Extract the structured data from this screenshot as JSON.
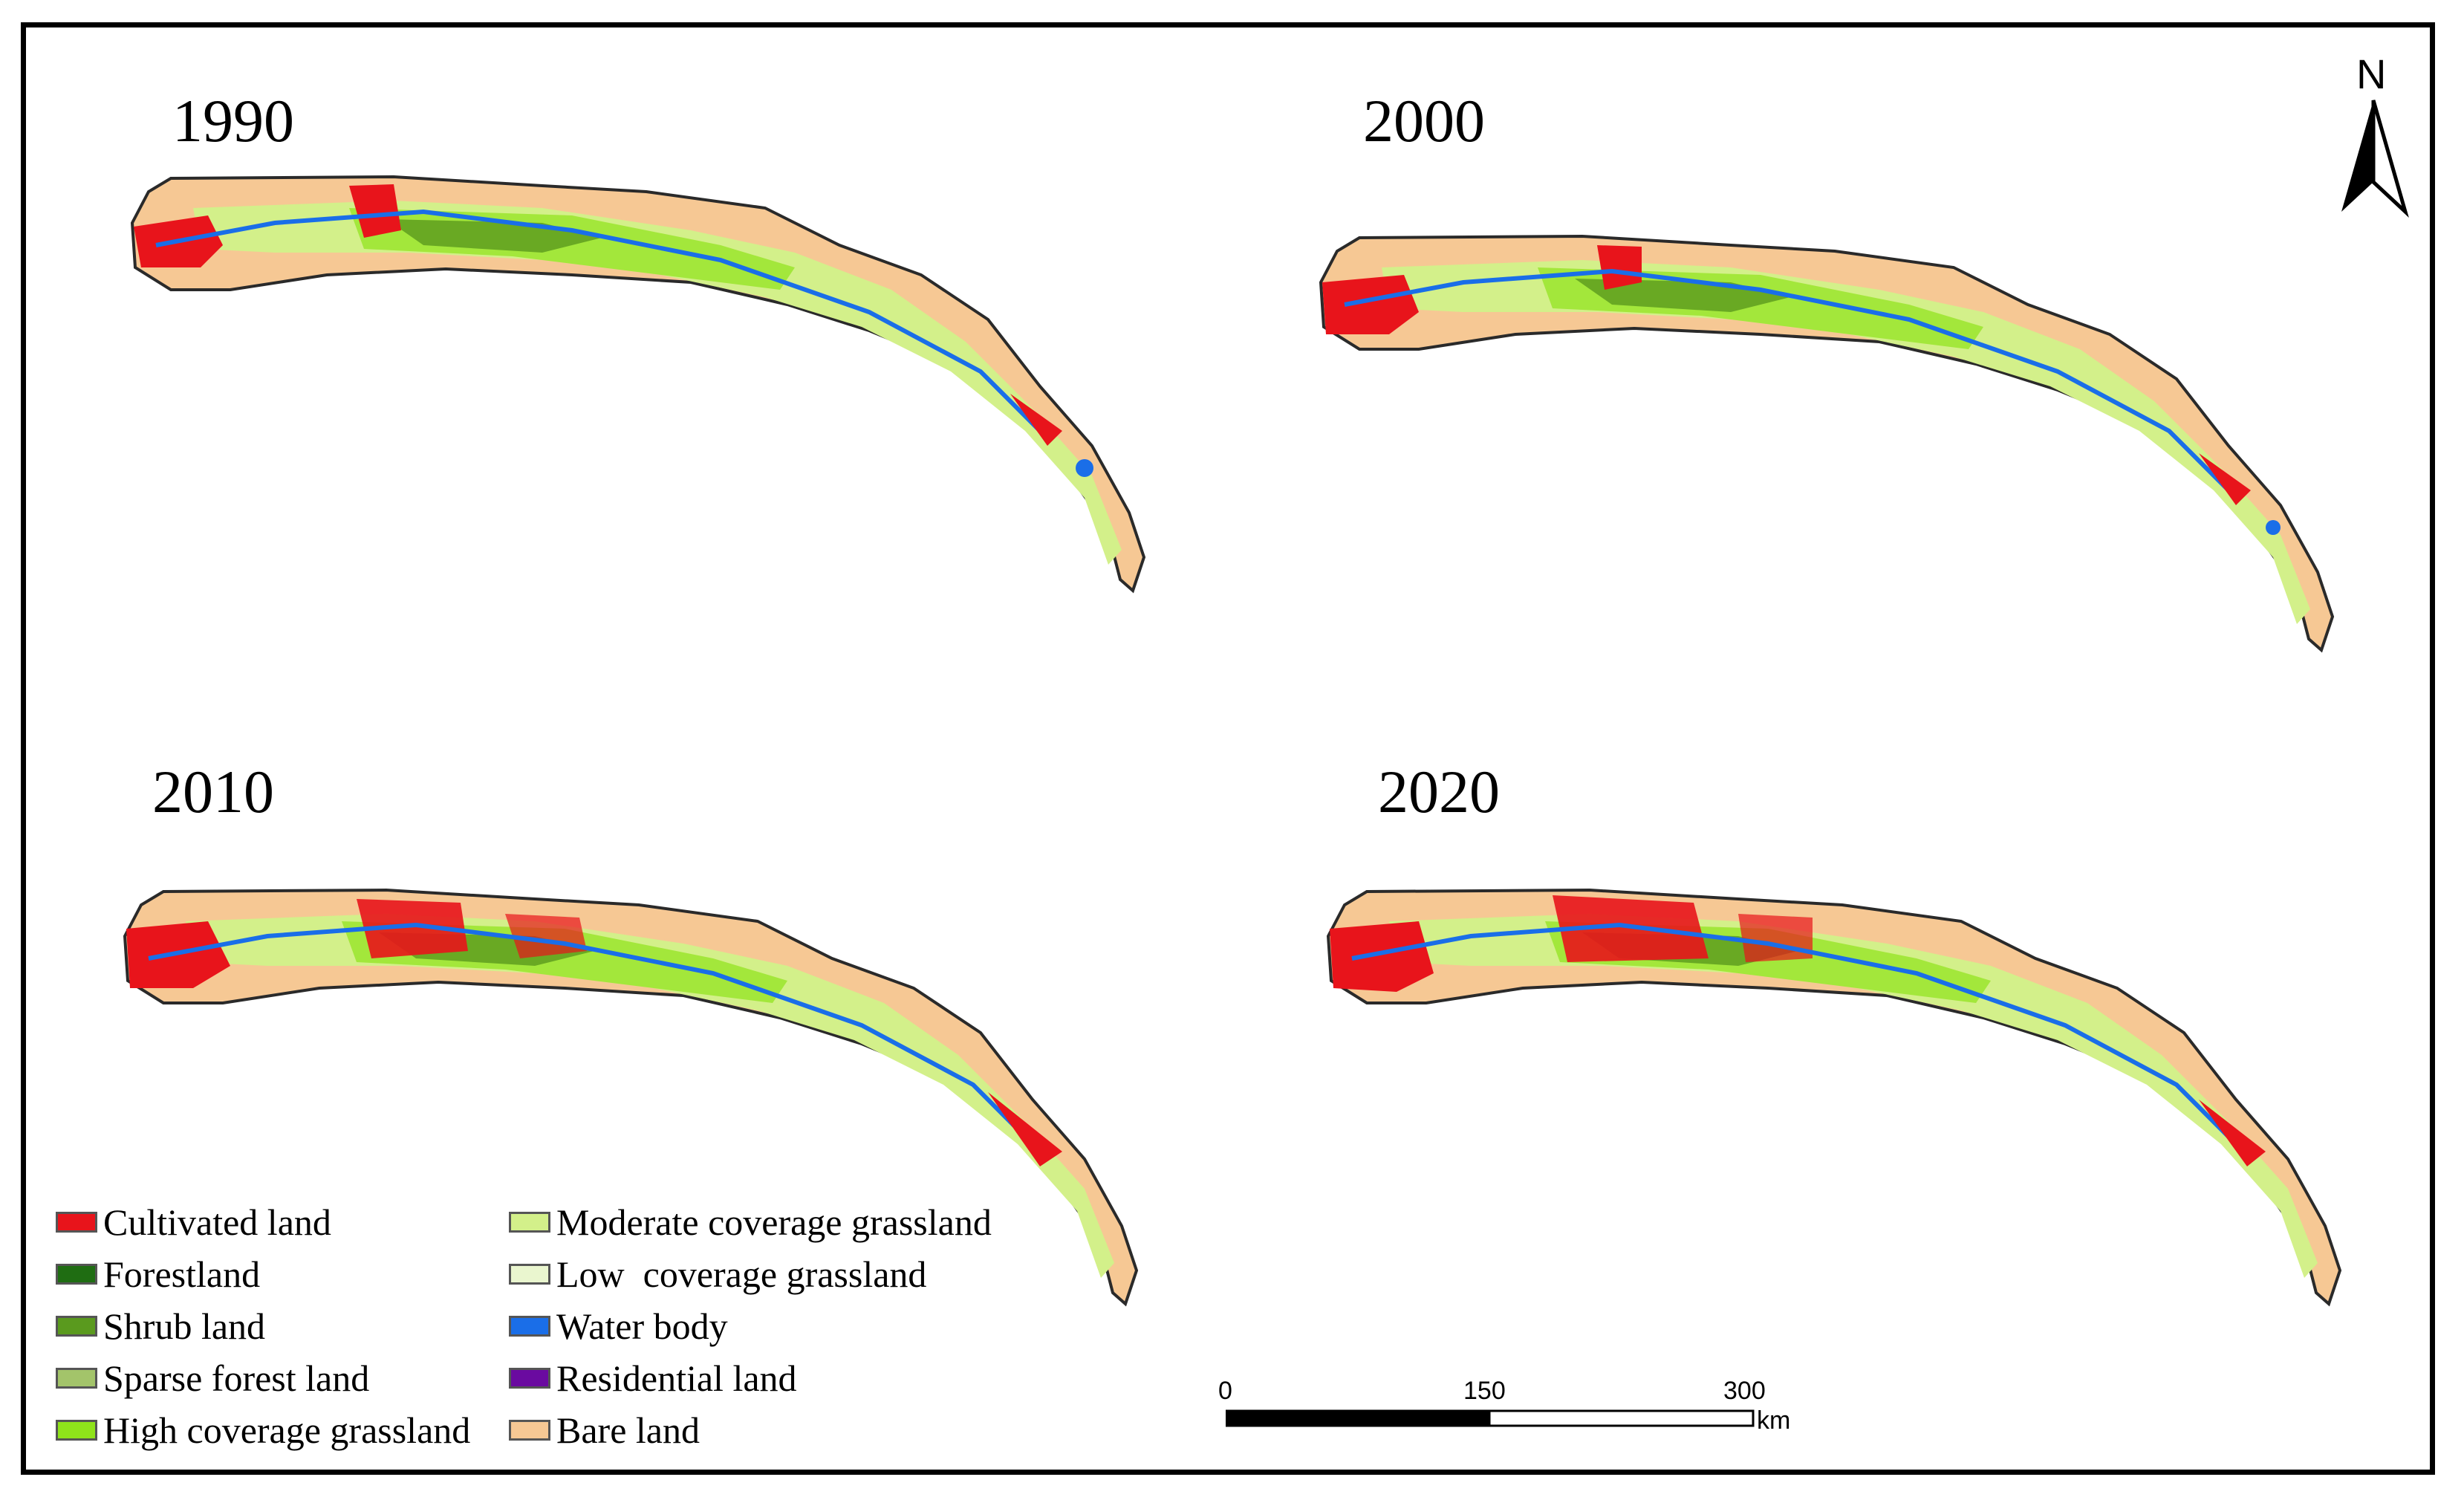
{
  "panels": [
    {
      "year": "1990"
    },
    {
      "year": "2000"
    },
    {
      "year": "2010"
    },
    {
      "year": "2020"
    }
  ],
  "north_arrow": {
    "label": "N"
  },
  "legend": {
    "items": [
      {
        "label": "Cultivated land",
        "color": "#e8141b"
      },
      {
        "label": "Forestland",
        "color": "#1f6d12"
      },
      {
        "label": "Shrub land",
        "color": "#5a9a1e"
      },
      {
        "label": "Sparse forest land",
        "color": "#a3c46a"
      },
      {
        "label": "High coverage grassland",
        "color": "#8fe31a"
      },
      {
        "label": "Moderate coverage grassland",
        "color": "#d3f08a"
      },
      {
        "label": "Low  coverage grassland",
        "color": "#eaf6cf"
      },
      {
        "label": "Water body",
        "color": "#1a6ee8"
      },
      {
        "label": "Residential land",
        "color": "#6a0aa0"
      },
      {
        "label": "Bare land",
        "color": "#f6c894"
      }
    ]
  },
  "scale_bar": {
    "ticks": [
      "0",
      "150",
      "300"
    ],
    "unit": "km"
  }
}
